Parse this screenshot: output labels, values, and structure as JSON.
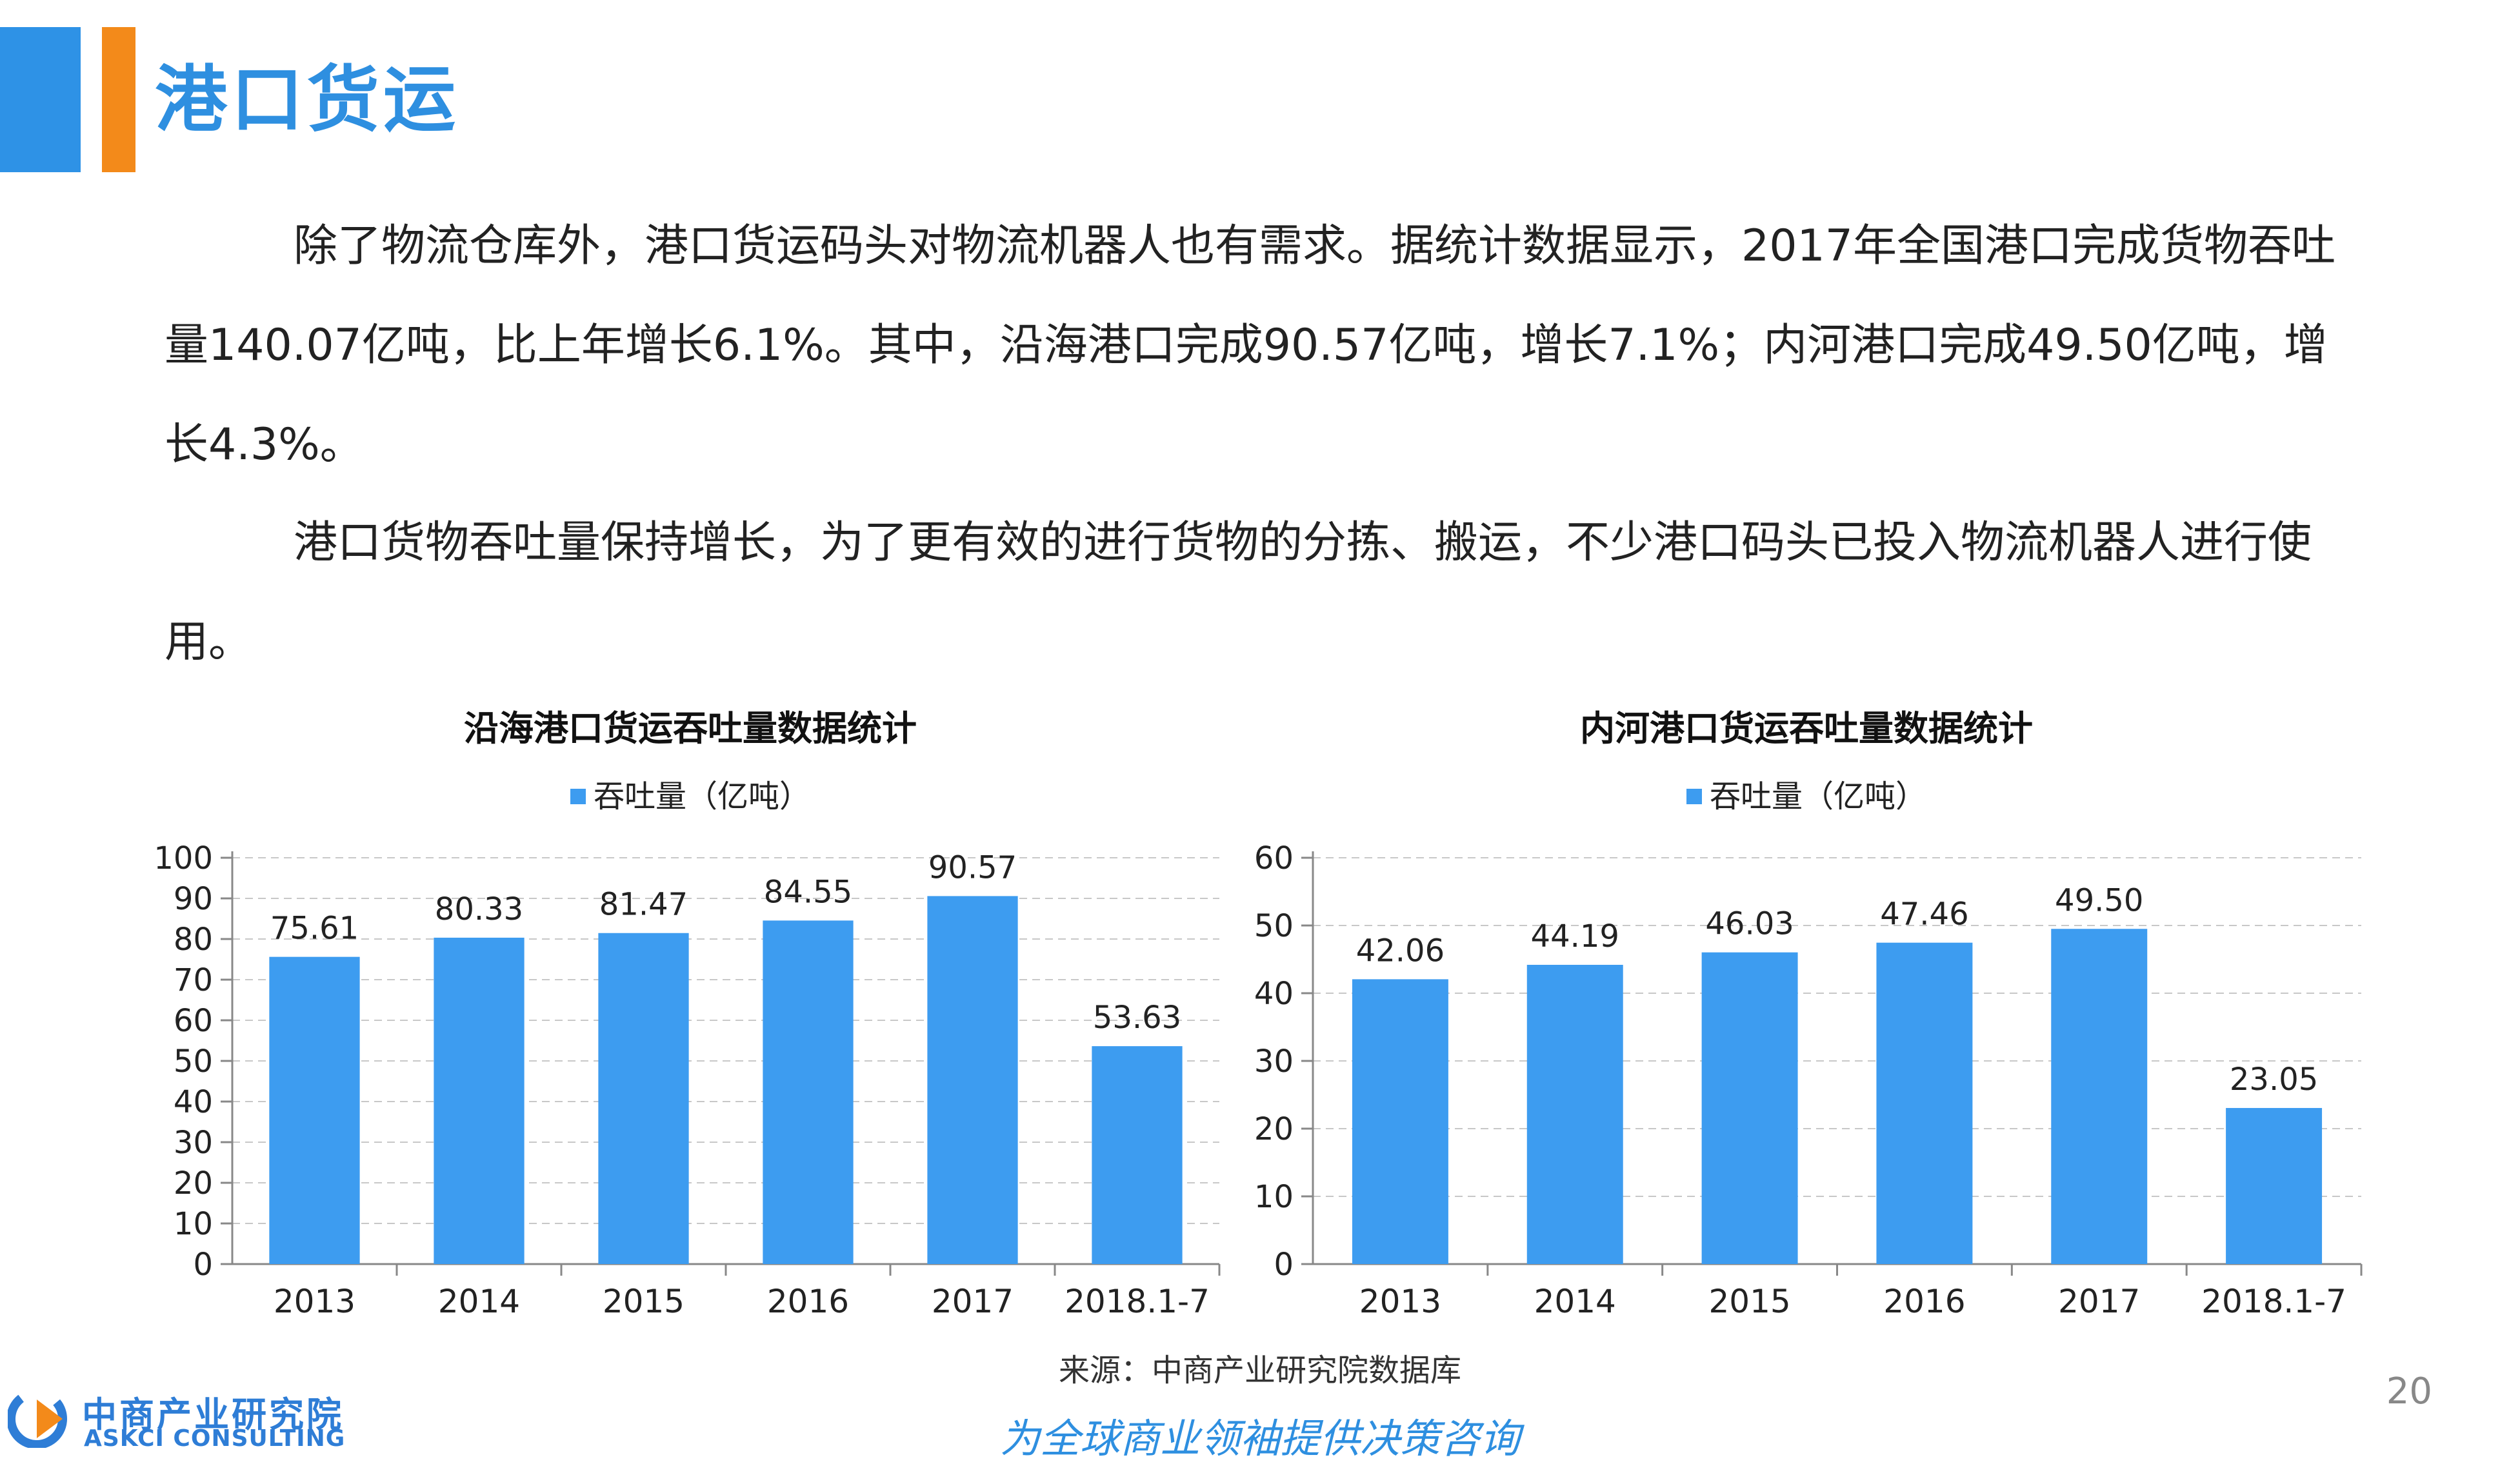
{
  "header": {
    "title": "港口货运"
  },
  "body": {
    "paragraph1": "除了物流仓库外，港口货运码头对物流机器人也有需求。据统计数据显示，2017年全国港口完成货物吞吐量140.07亿吨，比上年增长6.1%。其中，沿海港口完成90.57亿吨，增长7.1%；内河港口完成49.50亿吨，增长4.3%。",
    "paragraph2": "港口货物吞吐量保持增长，为了更有效的进行货物的分拣、搬运，不少港口码头已投入物流机器人进行使用。"
  },
  "chart_data": [
    {
      "type": "bar",
      "title": "沿海港口货运吞吐量数据统计",
      "categories": [
        "2013",
        "2014",
        "2015",
        "2016",
        "2017",
        "2018.1-7"
      ],
      "series": [
        {
          "name": "吞吐量（亿吨）",
          "values": [
            75.61,
            80.33,
            81.47,
            84.55,
            90.57,
            53.63
          ]
        }
      ],
      "data_labels": [
        "75.61",
        "80.33",
        "81.47",
        "84.55",
        "90.57",
        "53.63"
      ],
      "ylim": [
        0,
        100
      ],
      "yticks": [
        0,
        10,
        20,
        30,
        40,
        50,
        60,
        70,
        80,
        90,
        100
      ],
      "xlabel": "",
      "ylabel": "",
      "grid": true,
      "legend": "top-center",
      "bar_color": "#3d9cf0"
    },
    {
      "type": "bar",
      "title": "内河港口货运吞吐量数据统计",
      "categories": [
        "2013",
        "2014",
        "2015",
        "2016",
        "2017",
        "2018.1-7"
      ],
      "series": [
        {
          "name": "吞吐量（亿吨）",
          "values": [
            42.06,
            44.19,
            46.03,
            47.46,
            49.5,
            23.05
          ]
        }
      ],
      "data_labels": [
        "42.06",
        "44.19",
        "46.03",
        "47.46",
        "49.50",
        "23.05"
      ],
      "ylim": [
        0,
        60
      ],
      "yticks": [
        0,
        10,
        20,
        30,
        40,
        50,
        60
      ],
      "xlabel": "",
      "ylabel": "",
      "grid": true,
      "legend": "top-center",
      "bar_color": "#3d9cf0"
    }
  ],
  "footer": {
    "source": "来源：中商产业研究院数据库",
    "slogan": "为全球商业领袖提供决策咨询",
    "page_number": "20",
    "logo_cn": "中商产业研究院",
    "logo_en": "ASKCI CONSULTING",
    "logo_icon": "askci-logo-icon"
  },
  "colors": {
    "accent_blue": "#2e92e6",
    "accent_orange": "#f38a1a",
    "bar": "#3d9cf0"
  }
}
